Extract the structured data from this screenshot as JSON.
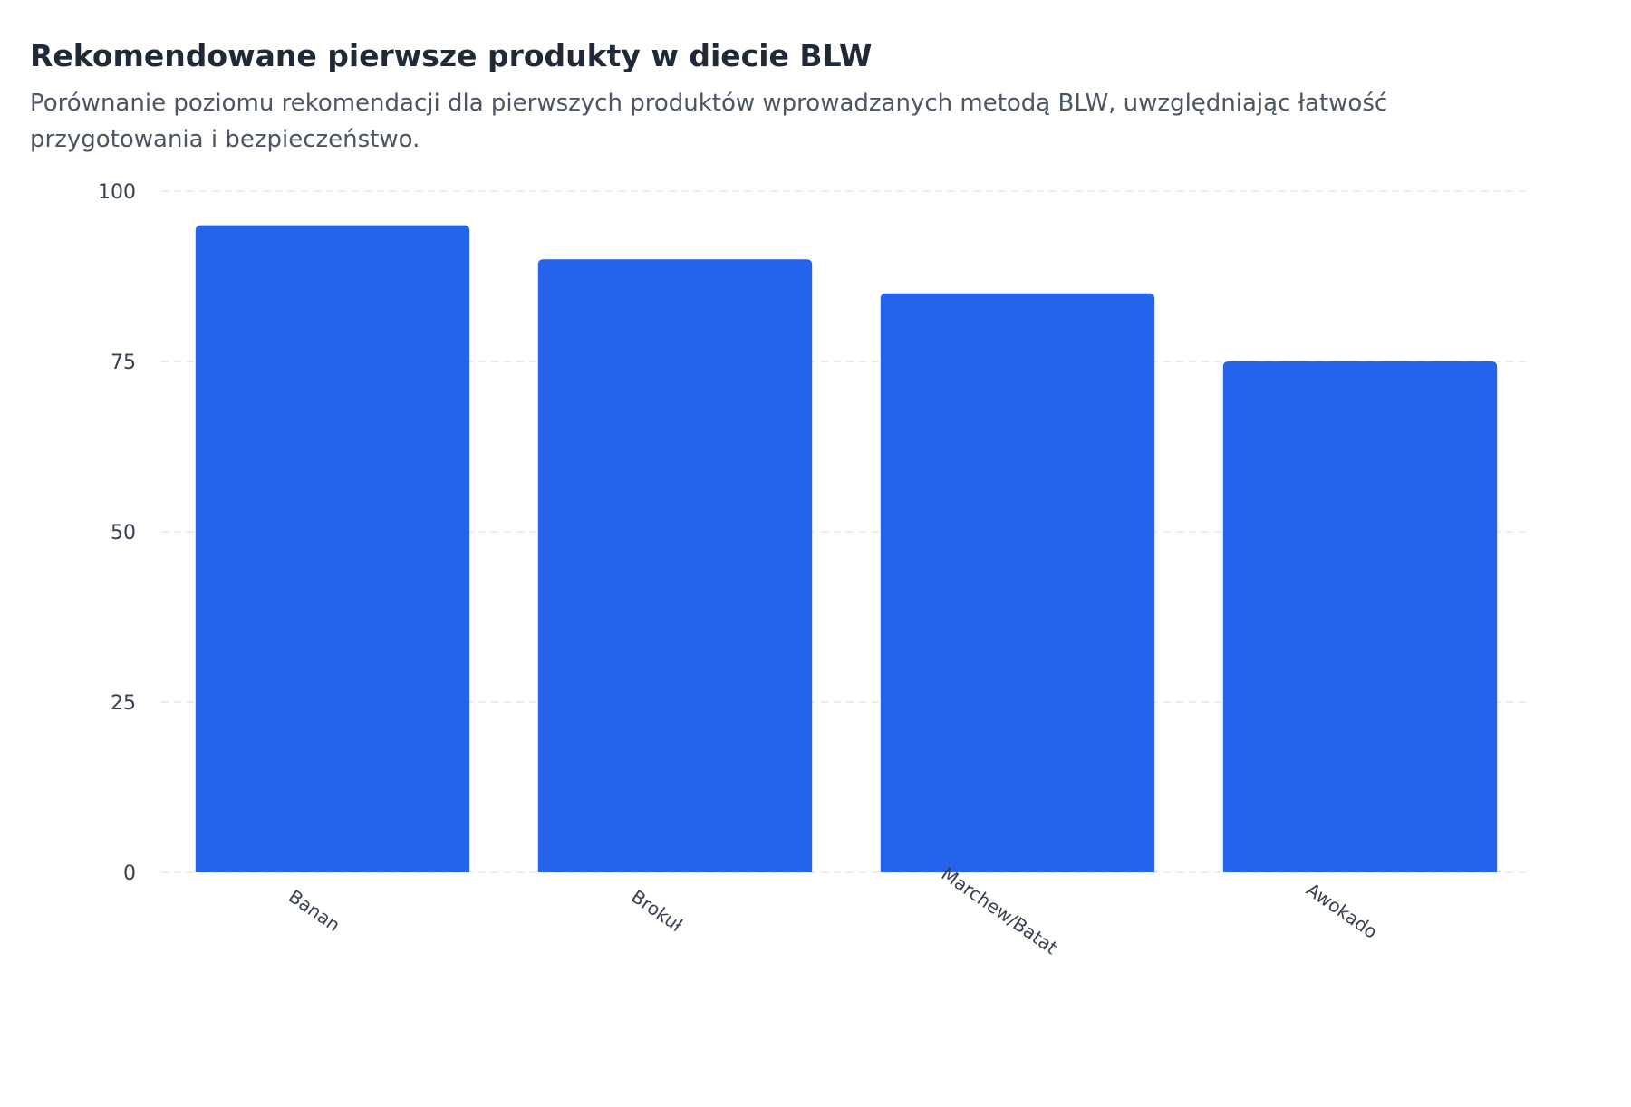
{
  "chart_data": {
    "type": "bar",
    "title": "Rekomendowane pierwsze produkty w diecie BLW",
    "subtitle": "Porównanie poziomu rekomendacji dla pierwszych produktów wprowadzanych metodą BLW, uwzględniając łatwość przygotowania i bezpieczeństwo.",
    "categories": [
      "Banan",
      "Brokuł",
      "Marchew/Batat",
      "Awokado"
    ],
    "values": [
      95,
      90,
      85,
      75
    ],
    "xlabel": "",
    "ylabel": "",
    "ylim": [
      0,
      100
    ],
    "yticks": [
      0,
      25,
      50,
      75,
      100
    ],
    "grid": true,
    "bar_color": "#2563eb",
    "grid_color": "#e5e7eb"
  }
}
